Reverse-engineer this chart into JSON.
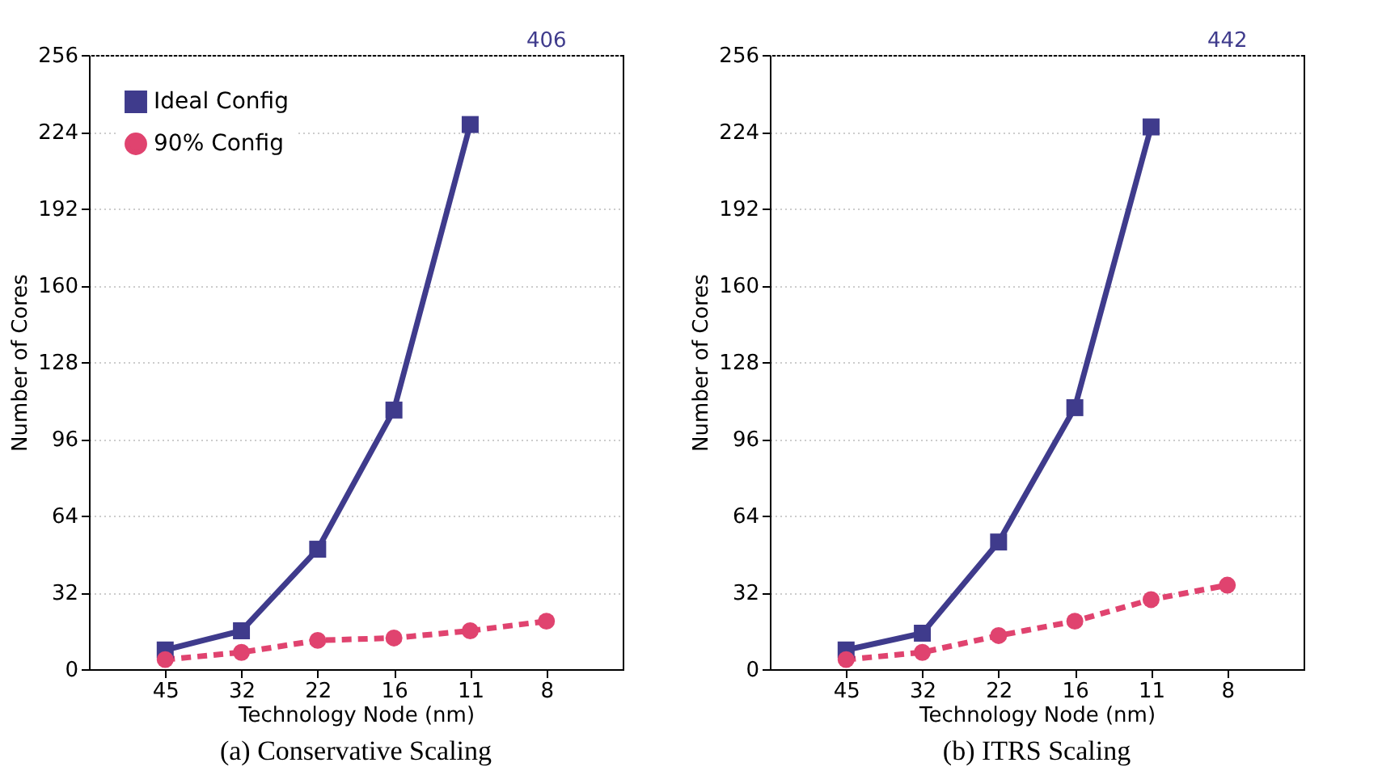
{
  "chart_data": [
    {
      "type": "line",
      "title": "(a) Conservative Scaling",
      "xlabel": "Technology Node (nm)",
      "ylabel": "Number of Cores",
      "categories": [
        "45",
        "32",
        "22",
        "16",
        "11",
        "8"
      ],
      "series": [
        {
          "name": "Ideal Config",
          "color": "#3f3b8c",
          "values": [
            8,
            16,
            50,
            108,
            227,
            null
          ],
          "marker": "square",
          "line_style": "solid"
        },
        {
          "name": "90% Config",
          "color": "#e0436f",
          "values": [
            4,
            7,
            12,
            13,
            16,
            20
          ],
          "marker": "circle",
          "line_style": "dashed"
        }
      ],
      "ylim": [
        0,
        256
      ],
      "yticks": [
        0,
        32,
        64,
        96,
        128,
        160,
        192,
        224,
        256
      ],
      "grid": "y",
      "legend": "top left",
      "annotations": [
        "406"
      ]
    },
    {
      "type": "line",
      "title": "(b) ITRS Scaling",
      "xlabel": "Technology Node (nm)",
      "ylabel": "Number of Cores",
      "categories": [
        "45",
        "32",
        "22",
        "16",
        "11",
        "8"
      ],
      "series": [
        {
          "name": "Ideal Config",
          "color": "#3f3b8c",
          "values": [
            8,
            15,
            53,
            109,
            226,
            null
          ],
          "marker": "square",
          "line_style": "solid"
        },
        {
          "name": "90% Config",
          "color": "#e0436f",
          "values": [
            4,
            7,
            14,
            20,
            29,
            35
          ],
          "marker": "circle",
          "line_style": "dashed"
        }
      ],
      "ylim": [
        0,
        256
      ],
      "yticks": [
        0,
        32,
        64,
        96,
        128,
        160,
        192,
        224,
        256
      ],
      "grid": "y",
      "legend": "top left",
      "annotations": [
        "442"
      ]
    }
  ]
}
